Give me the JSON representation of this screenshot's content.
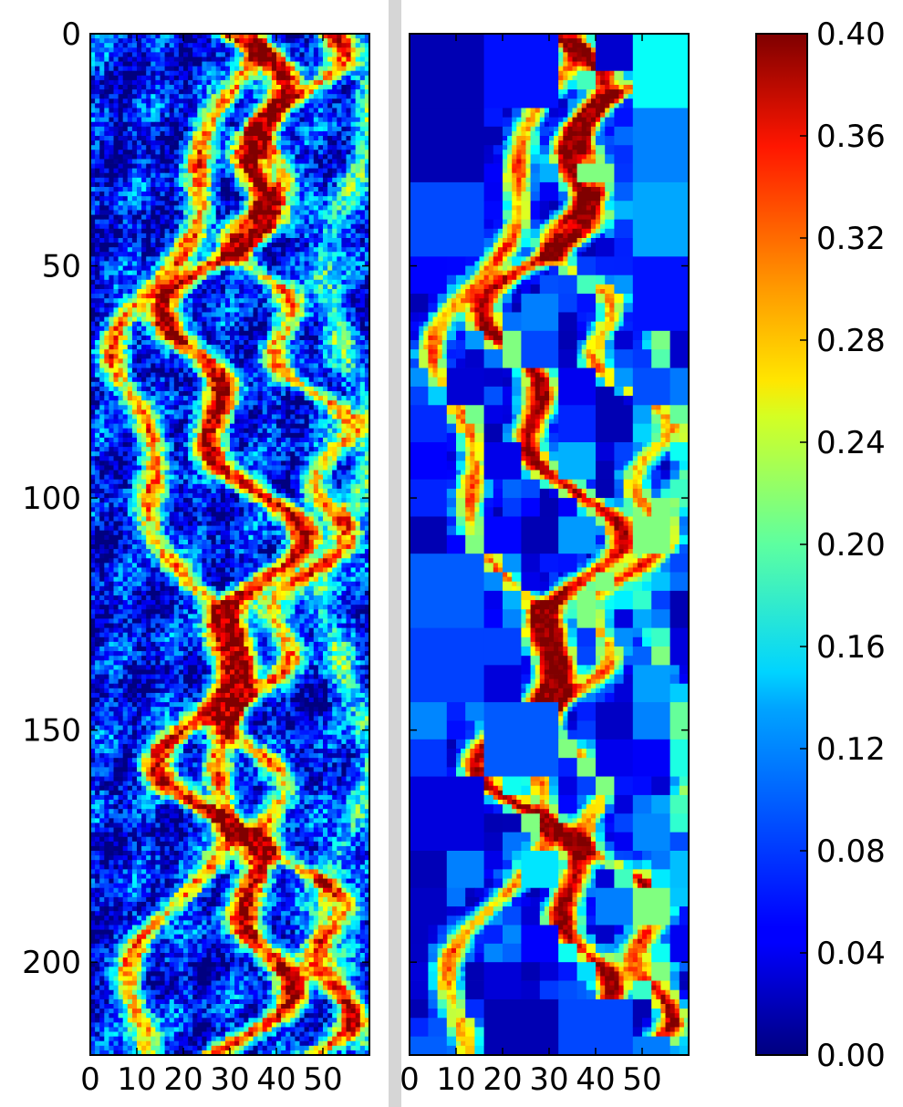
{
  "chart_data": [
    {
      "type": "heatmap",
      "title": "",
      "xlabel": "",
      "ylabel": "",
      "xlim": [
        0,
        60
      ],
      "ylim": [
        220,
        0
      ],
      "xticks": [
        0,
        10,
        20,
        30,
        40,
        50
      ],
      "yticks": [
        0,
        50,
        100,
        150,
        200
      ],
      "x_tick_labels": [
        "0",
        "10",
        "20",
        "30",
        "40",
        "50"
      ],
      "y_tick_labels": [
        "0",
        "50",
        "100",
        "150",
        "200"
      ],
      "colormap": "jet",
      "vmin": 0.0,
      "vmax": 0.4,
      "resolution": "fine",
      "grid": false,
      "notes_visible": "Noisy fine-grained field: mostly low values (0.02–0.10) with meandering high-value streaks (0.28–0.40) concentrated around x=15–45"
    },
    {
      "type": "heatmap",
      "title": "",
      "xlabel": "",
      "ylabel": "",
      "xlim": [
        0,
        60
      ],
      "ylim": [
        220,
        0
      ],
      "xticks": [
        0,
        10,
        20,
        30,
        40,
        50
      ],
      "x_tick_labels": [
        "0",
        "10",
        "20",
        "30",
        "40",
        "50"
      ],
      "y_tick_labels": [],
      "colormap": "jet",
      "vmin": 0.0,
      "vmax": 0.4,
      "resolution": "adaptive-blocks",
      "grid": false
    }
  ],
  "colorbar": {
    "min": 0.0,
    "max": 0.4,
    "ticks": [
      0.0,
      0.04,
      0.08,
      0.12,
      0.16,
      0.2,
      0.24,
      0.28,
      0.32,
      0.36,
      0.4
    ],
    "tick_labels": [
      "0.00",
      "0.04",
      "0.08",
      "0.12",
      "0.16",
      "0.20",
      "0.24",
      "0.28",
      "0.32",
      "0.36",
      "0.40"
    ],
    "colormap": "jet"
  },
  "colors": {
    "divider": "#d6d6d6",
    "axis": "#000000"
  }
}
